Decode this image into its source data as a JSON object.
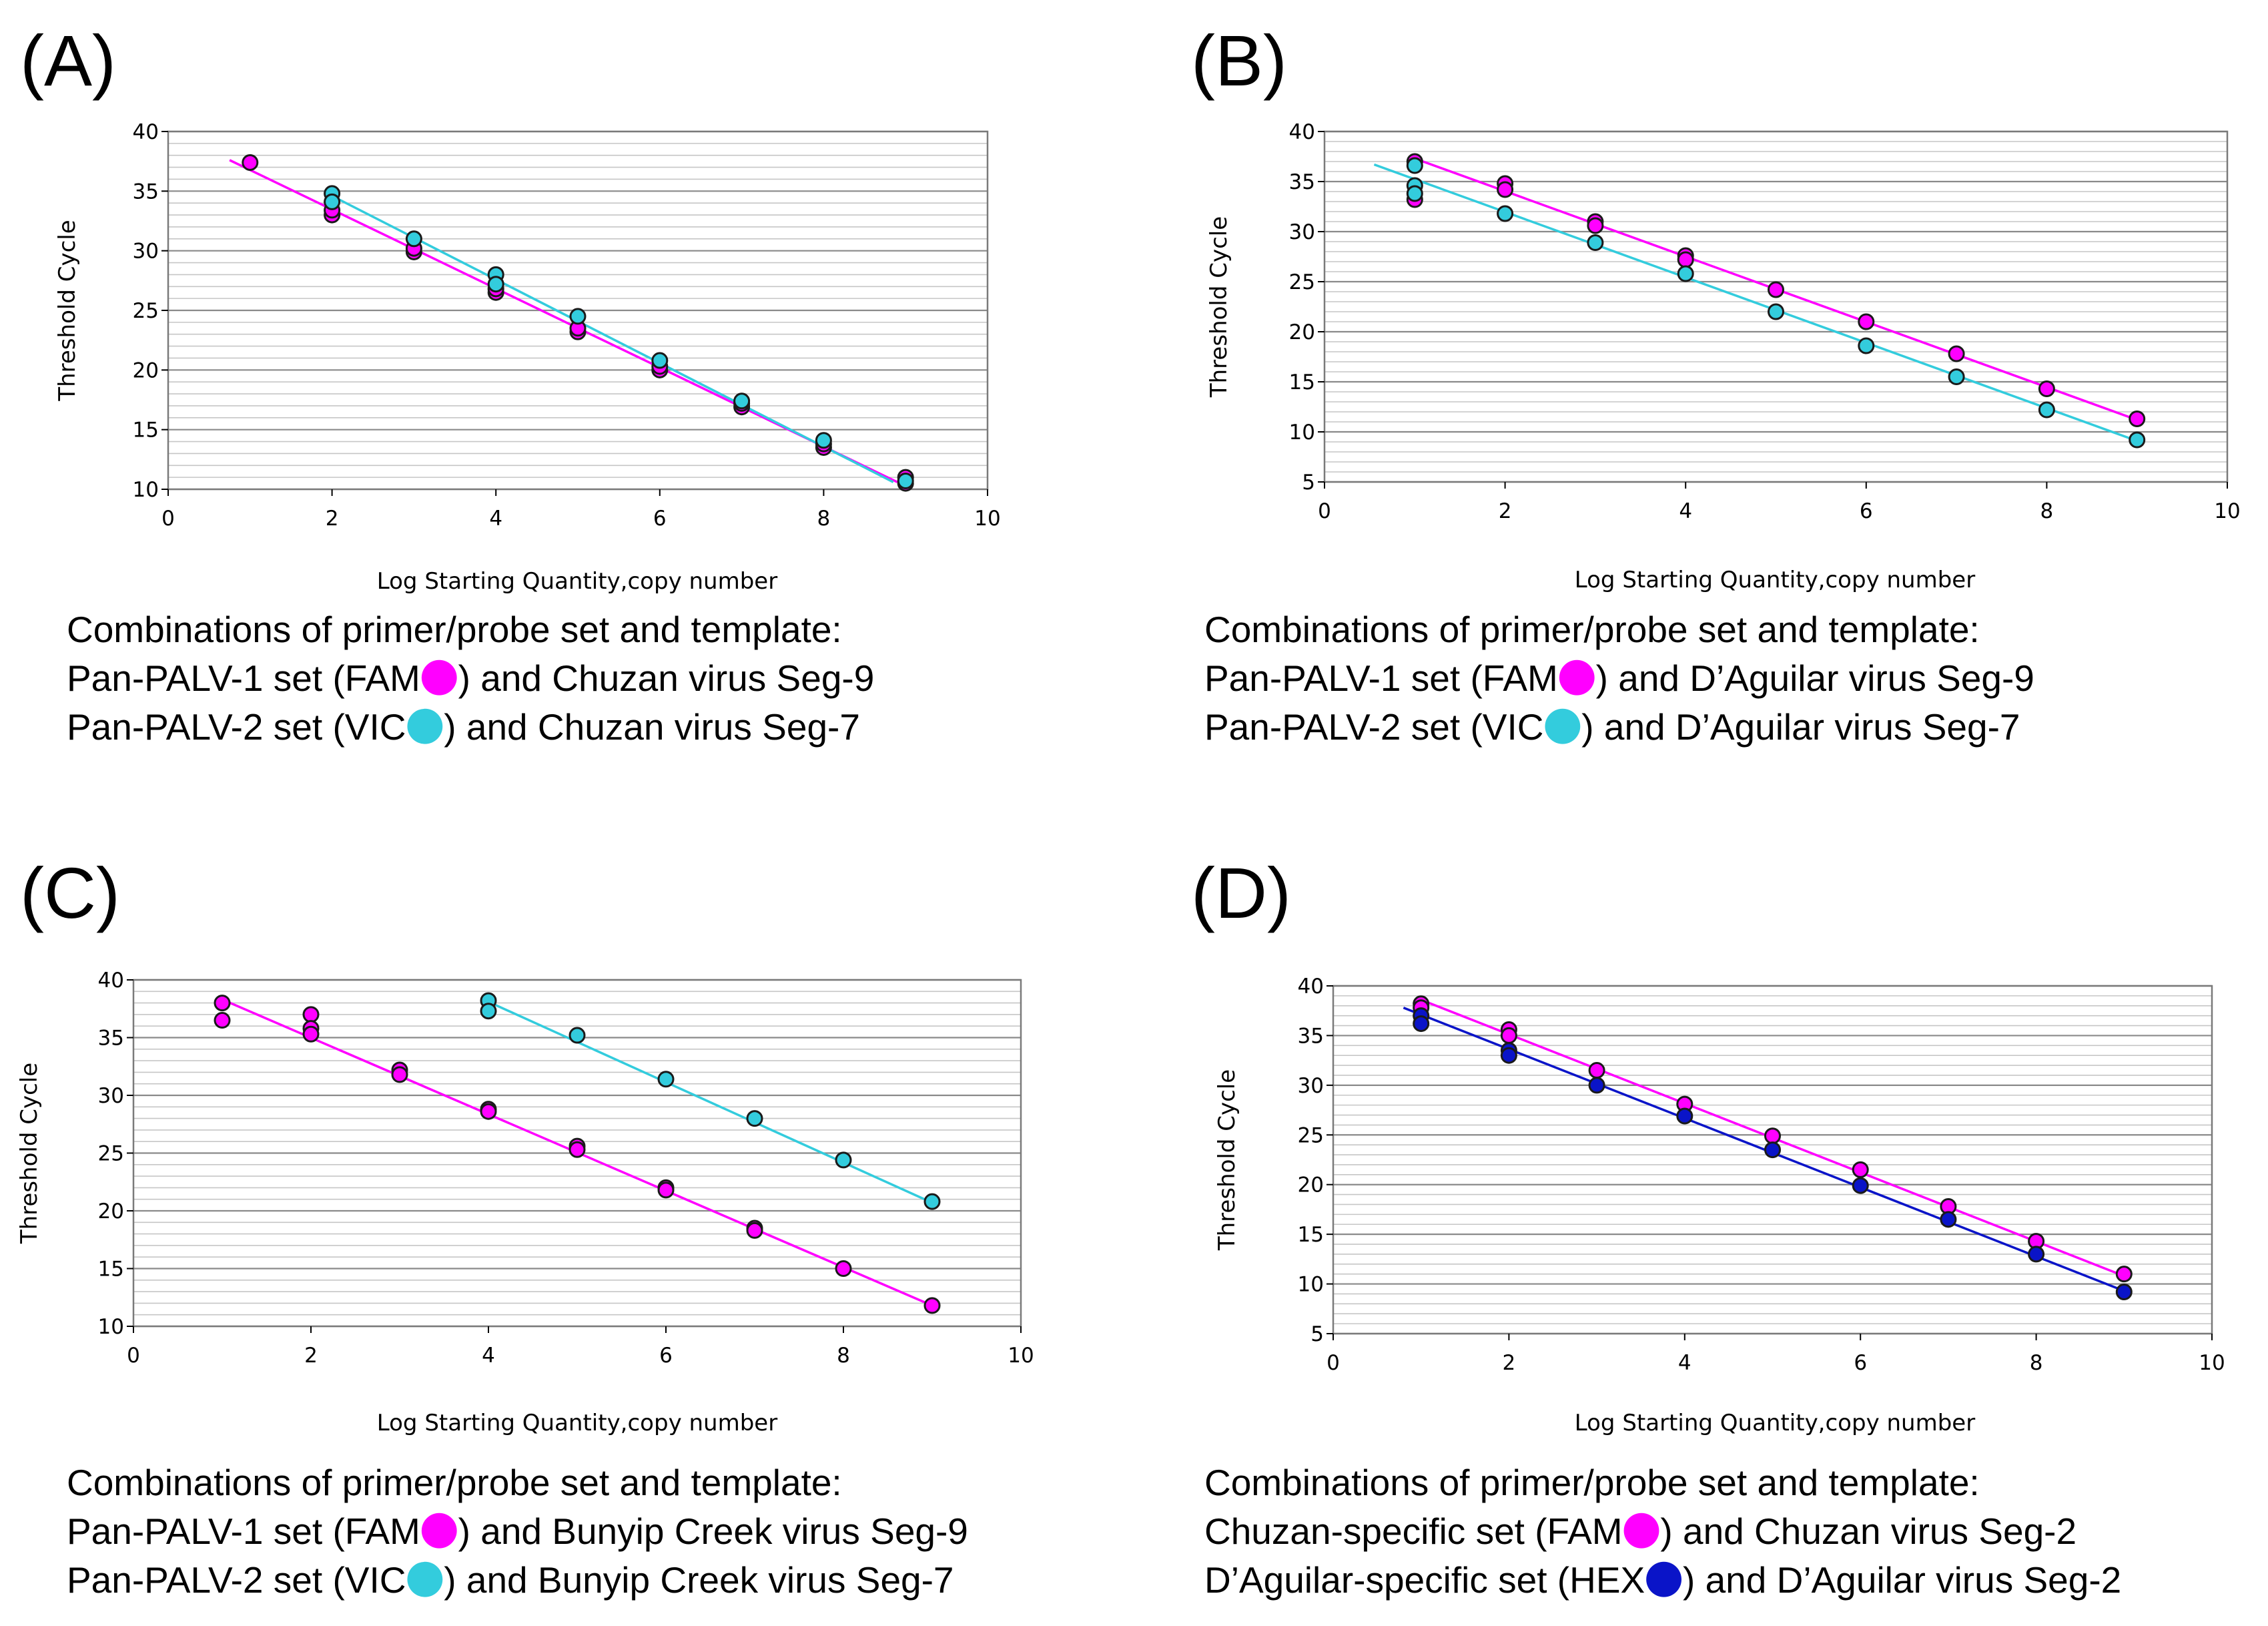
{
  "chart_data": [
    {
      "type": "scatter",
      "panel_label": "(A)",
      "xlabel": "Log Starting Quantity,copy number",
      "ylabel": "Threshold Cycle",
      "xlim": [
        0,
        10
      ],
      "ylim": [
        10,
        40
      ],
      "xticks": [
        0,
        2,
        4,
        6,
        8,
        10
      ],
      "yticks": [
        10,
        15,
        20,
        25,
        30,
        35,
        40
      ],
      "grid": true,
      "series": [
        {
          "name": "FAM",
          "color": "#ff00ff",
          "points": [
            [
              1,
              37.4
            ],
            [
              2,
              33.0
            ],
            [
              2,
              33.4
            ],
            [
              3,
              29.9
            ],
            [
              3,
              30.2
            ],
            [
              4,
              26.5
            ],
            [
              4,
              26.8
            ],
            [
              5,
              23.2
            ],
            [
              5,
              23.5
            ],
            [
              6,
              20.0
            ],
            [
              6,
              20.3
            ],
            [
              7,
              16.9
            ],
            [
              7,
              17.2
            ],
            [
              8,
              13.5
            ],
            [
              8,
              13.8
            ],
            [
              9,
              10.5
            ],
            [
              9,
              11.0
            ]
          ],
          "fit": [
            [
              0.75,
              37.6
            ],
            [
              8.9,
              10.6
            ]
          ]
        },
        {
          "name": "VIC",
          "color": "#33ccdd",
          "points": [
            [
              2,
              34.8
            ],
            [
              2,
              34.1
            ],
            [
              3,
              31.0
            ],
            [
              4,
              28.0
            ],
            [
              4,
              27.2
            ],
            [
              5,
              24.5
            ],
            [
              6,
              20.8
            ],
            [
              7,
              17.4
            ],
            [
              8,
              14.1
            ],
            [
              9,
              10.7
            ]
          ],
          "fit": [
            [
              2,
              34.6
            ],
            [
              8.85,
              10.6
            ]
          ]
        }
      ],
      "caption": [
        {
          "before": "Combinations of primer/probe set and template:",
          "marker": null,
          "after": ""
        },
        {
          "before": "Pan-PALV-1 set (FAM",
          "marker": "FAM",
          "after": ") and Chuzan virus Seg-9"
        },
        {
          "before": "Pan-PALV-2 set (VIC",
          "marker": "VIC",
          "after": ") and Chuzan virus Seg-7"
        }
      ]
    },
    {
      "type": "scatter",
      "panel_label": "(B)",
      "xlabel": "Log Starting Quantity,copy number",
      "ylabel": "Threshold Cycle",
      "xlim": [
        0,
        10
      ],
      "ylim": [
        5,
        40
      ],
      "xticks": [
        0,
        2,
        4,
        6,
        8,
        10
      ],
      "yticks": [
        5,
        10,
        15,
        20,
        25,
        30,
        35,
        40
      ],
      "grid": true,
      "series": [
        {
          "name": "FAM",
          "color": "#ff00ff",
          "points": [
            [
              1,
              37.0
            ],
            [
              1,
              33.2
            ],
            [
              2,
              34.8
            ],
            [
              2,
              34.2
            ],
            [
              3,
              31.0
            ],
            [
              3,
              30.6
            ],
            [
              4,
              27.6
            ],
            [
              4,
              27.2
            ],
            [
              5,
              24.2
            ],
            [
              6,
              21.0
            ],
            [
              7,
              17.8
            ],
            [
              8,
              14.3
            ],
            [
              9,
              11.3
            ]
          ],
          "fit": [
            [
              1,
              37.3
            ],
            [
              9,
              11.2
            ]
          ]
        },
        {
          "name": "VIC",
          "color": "#33ccdd",
          "points": [
            [
              1,
              36.6
            ],
            [
              1,
              34.6
            ],
            [
              1,
              33.8
            ],
            [
              2,
              31.8
            ],
            [
              3,
              28.9
            ],
            [
              4,
              25.8
            ],
            [
              5,
              22.0
            ],
            [
              6,
              18.6
            ],
            [
              7,
              15.5
            ],
            [
              8,
              12.2
            ],
            [
              9,
              9.2
            ]
          ],
          "fit": [
            [
              0.55,
              36.7
            ],
            [
              9,
              9.1
            ]
          ]
        }
      ],
      "caption": [
        {
          "before": "Combinations of primer/probe set and template:",
          "marker": null,
          "after": ""
        },
        {
          "before": "Pan-PALV-1 set (FAM",
          "marker": "FAM",
          "after": ") and D’Aguilar virus Seg-9"
        },
        {
          "before": "Pan-PALV-2 set (VIC",
          "marker": "VIC",
          "after": ") and D’Aguilar virus Seg-7"
        }
      ]
    },
    {
      "type": "scatter",
      "panel_label": "(C)",
      "xlabel": "Log Starting Quantity,copy number",
      "ylabel": "Threshold Cycle",
      "xlim": [
        0,
        10
      ],
      "ylim": [
        10,
        40
      ],
      "xticks": [
        0,
        2,
        4,
        6,
        8,
        10
      ],
      "yticks": [
        10,
        15,
        20,
        25,
        30,
        35,
        40
      ],
      "grid": true,
      "series": [
        {
          "name": "FAM",
          "color": "#ff00ff",
          "points": [
            [
              1,
              38.0
            ],
            [
              1,
              36.5
            ],
            [
              2,
              37.0
            ],
            [
              2,
              35.8
            ],
            [
              2,
              35.3
            ],
            [
              3,
              32.2
            ],
            [
              3,
              31.8
            ],
            [
              4,
              28.8
            ],
            [
              4,
              28.6
            ],
            [
              5,
              25.6
            ],
            [
              5,
              25.3
            ],
            [
              6,
              22.0
            ],
            [
              6,
              21.8
            ],
            [
              7,
              18.5
            ],
            [
              7,
              18.3
            ],
            [
              8,
              15.0
            ],
            [
              9,
              11.8
            ]
          ],
          "fit": [
            [
              1,
              38.3
            ],
            [
              9,
              11.8
            ]
          ]
        },
        {
          "name": "VIC",
          "color": "#33ccdd",
          "points": [
            [
              4,
              38.2
            ],
            [
              4,
              37.3
            ],
            [
              5,
              35.2
            ],
            [
              6,
              31.4
            ],
            [
              7,
              28.0
            ],
            [
              8,
              24.4
            ],
            [
              9,
              20.8
            ]
          ],
          "fit": [
            [
              4,
              38.1
            ],
            [
              9,
              20.7
            ]
          ]
        }
      ],
      "caption": [
        {
          "before": "Combinations of primer/probe set and template:",
          "marker": null,
          "after": ""
        },
        {
          "before": "Pan-PALV-1 set (FAM",
          "marker": "FAM",
          "after": ") and Bunyip Creek virus Seg-9"
        },
        {
          "before": "Pan-PALV-2 set (VIC",
          "marker": "VIC",
          "after": ") and Bunyip Creek virus Seg-7"
        }
      ]
    },
    {
      "type": "scatter",
      "panel_label": "(D)",
      "xlabel": "Log Starting Quantity,copy number",
      "ylabel": "Threshold Cycle",
      "xlim": [
        0,
        10
      ],
      "ylim": [
        5,
        40
      ],
      "xticks": [
        0,
        2,
        4,
        6,
        8,
        10
      ],
      "yticks": [
        5,
        10,
        15,
        20,
        25,
        30,
        35,
        40
      ],
      "grid": true,
      "series": [
        {
          "name": "FAM",
          "color": "#ff00ff",
          "points": [
            [
              1,
              38.2
            ],
            [
              1,
              37.8
            ],
            [
              2,
              35.6
            ],
            [
              2,
              35.0
            ],
            [
              3,
              31.5
            ],
            [
              4,
              28.1
            ],
            [
              5,
              24.9
            ],
            [
              6,
              21.5
            ],
            [
              7,
              17.8
            ],
            [
              8,
              14.3
            ],
            [
              9,
              11.0
            ]
          ],
          "fit": [
            [
              1,
              38.6
            ],
            [
              9,
              10.8
            ]
          ]
        },
        {
          "name": "HEX",
          "color": "#0a14c8",
          "points": [
            [
              1,
              37.0
            ],
            [
              1,
              36.2
            ],
            [
              2,
              33.5
            ],
            [
              2,
              33.0
            ],
            [
              3,
              30.0
            ],
            [
              4,
              26.9
            ],
            [
              5,
              23.5
            ],
            [
              6,
              19.9
            ],
            [
              7,
              16.5
            ],
            [
              8,
              13.0
            ],
            [
              9,
              9.2
            ]
          ],
          "fit": [
            [
              0.8,
              37.8
            ],
            [
              9,
              9.3
            ]
          ]
        }
      ],
      "caption": [
        {
          "before": "Combinations of primer/probe set and template:",
          "marker": null,
          "after": ""
        },
        {
          "before": "Chuzan-specific set (FAM",
          "marker": "FAM",
          "after": ") and Chuzan virus Seg-2"
        },
        {
          "before": "D’Aguilar-specific set (HEX",
          "marker": "HEX",
          "after": ") and D’Aguilar virus Seg-2"
        }
      ]
    }
  ]
}
